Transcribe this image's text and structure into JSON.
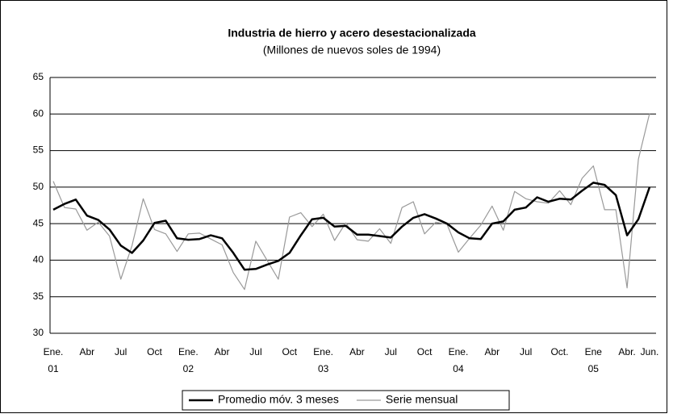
{
  "chart_data": {
    "type": "line",
    "title": "Industria de hierro y acero desestacionalizada",
    "subtitle": "(Millones de nuevos soles de 1994)",
    "categories": [
      "Ene.",
      null,
      null,
      "Abr",
      null,
      null,
      "Jul",
      null,
      null,
      "Oct",
      null,
      null,
      "Ene.",
      null,
      null,
      "Abr",
      null,
      null,
      "Jul",
      null,
      null,
      "Oct",
      null,
      null,
      "Ene.",
      null,
      null,
      "Abr",
      null,
      null,
      "Jul",
      null,
      null,
      "Oct",
      null,
      null,
      "Ene.",
      null,
      null,
      "Abr",
      null,
      null,
      "Jul",
      null,
      null,
      "Oct.",
      null,
      null,
      "Ene",
      null,
      null,
      "Abr.",
      null,
      "Jun."
    ],
    "category_groups": [
      "01",
      null,
      null,
      null,
      null,
      null,
      null,
      null,
      null,
      null,
      null,
      null,
      "02",
      null,
      null,
      null,
      null,
      null,
      null,
      null,
      null,
      null,
      null,
      null,
      "03",
      null,
      null,
      null,
      null,
      null,
      null,
      null,
      null,
      null,
      null,
      null,
      "04",
      null,
      null,
      null,
      null,
      null,
      null,
      null,
      null,
      null,
      null,
      null,
      "05",
      null,
      null,
      null,
      null,
      null
    ],
    "series": [
      {
        "name": "Promedio móv. 3 meses",
        "color": "#000000",
        "width": 2.5,
        "values": [
          46.9,
          47.7,
          48.3,
          46.1,
          45.5,
          44.2,
          42.0,
          41.0,
          42.7,
          45.1,
          45.4,
          43.0,
          42.8,
          42.9,
          43.4,
          43.0,
          41.0,
          38.7,
          38.8,
          39.4,
          39.9,
          41.0,
          43.4,
          45.6,
          45.8,
          44.6,
          44.7,
          43.5,
          43.5,
          43.3,
          43.1,
          44.6,
          45.8,
          46.3,
          45.7,
          45.0,
          43.8,
          43.0,
          42.9,
          45.0,
          45.3,
          46.9,
          47.2,
          48.6,
          48.0,
          48.4,
          48.3,
          49.5,
          50.6,
          50.3,
          48.9,
          43.4,
          45.6,
          50.0
        ]
      },
      {
        "name": "Serie mensual",
        "color": "#999999",
        "width": 1.2,
        "values": [
          50.8,
          47.2,
          47.0,
          44.1,
          45.2,
          43.3,
          37.4,
          42.0,
          48.4,
          44.2,
          43.6,
          41.2,
          43.6,
          43.7,
          42.9,
          42.1,
          38.3,
          36.0,
          42.6,
          40.0,
          37.4,
          45.9,
          46.5,
          44.6,
          46.3,
          42.7,
          45.1,
          42.8,
          42.6,
          44.3,
          42.3,
          47.2,
          48.0,
          43.6,
          45.2,
          44.9,
          41.1,
          43.0,
          44.8,
          47.4,
          44.1,
          49.4,
          48.4,
          48.0,
          47.8,
          49.5,
          47.6,
          51.2,
          52.9,
          46.9,
          46.9,
          36.2,
          53.8,
          60.1
        ]
      }
    ],
    "ylim": [
      30,
      65
    ],
    "yticks": [
      30,
      35,
      40,
      45,
      50,
      55,
      60,
      65
    ],
    "grid": true,
    "legend": "bottom"
  }
}
